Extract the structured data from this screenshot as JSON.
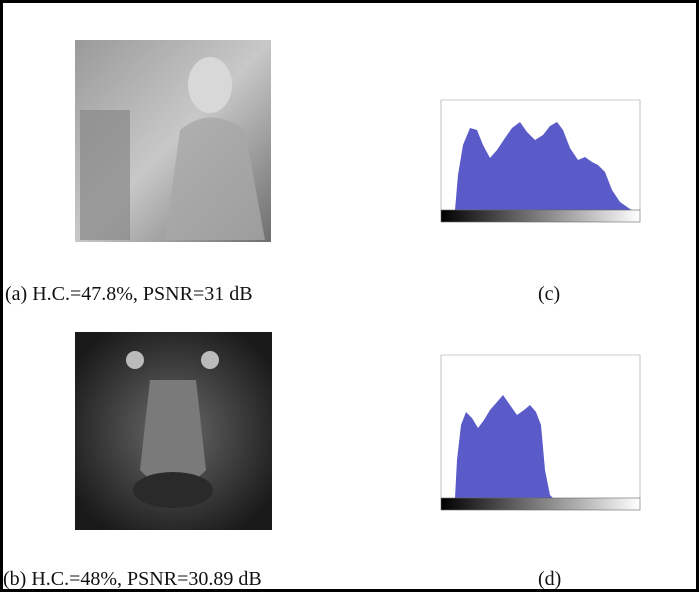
{
  "figure": {
    "panels": [
      {
        "caption": "(a) H.C.=47.8%, PSNR=31 dB"
      },
      {
        "caption": "(c)"
      },
      {
        "caption": "(b) H.C.=48%, PSNR=30.89 dB"
      },
      {
        "caption": "(d)"
      }
    ]
  }
}
